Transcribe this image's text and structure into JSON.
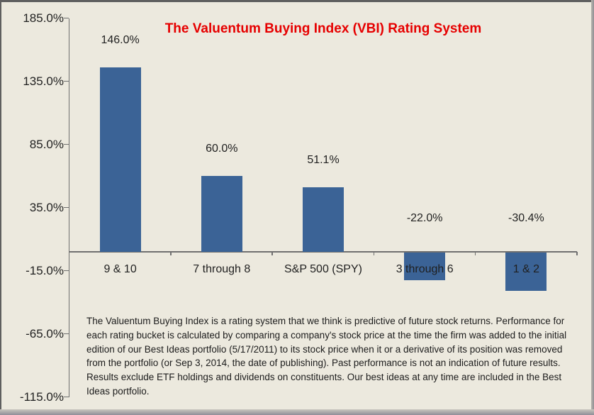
{
  "title": "The Valuentum Buying Index (VBI) Rating System",
  "chart_data": {
    "type": "bar",
    "title": "The Valuentum Buying Index (VBI) Rating System",
    "title_color": "#E60000",
    "categories": [
      "9 & 10",
      "7 through 8",
      "S&P 500 (SPY)",
      "3 through 6",
      "1 & 2"
    ],
    "values": [
      146.0,
      60.0,
      51.1,
      -22.0,
      -30.4
    ],
    "data_labels": [
      "146.0%",
      "60.0%",
      "51.1%",
      "-22.0%",
      "-30.4%"
    ],
    "xlabel": "",
    "ylabel": "",
    "y_axis": {
      "min": -115,
      "max": 185,
      "tick_step": 50,
      "tick_values": [
        185,
        135,
        85,
        35,
        -15,
        -65,
        -115
      ],
      "tick_labels": [
        "185.0%",
        "135.0%",
        "85.0%",
        "35.0%",
        "-15.0%",
        "-65.0%",
        "-115.0%"
      ]
    },
    "grid": false,
    "legend": false,
    "bar_color": "#3B6396",
    "background_color": "#ECE9DE",
    "axis_color": "#707070"
  },
  "footnote": {
    "text": "The Valuentum Buying Index is a rating system that we think is predictive of future stock returns. Performance for each rating bucket is calculated by comparing a company's stock price at the time the firm was added to the initial edition of our Best Ideas portfolio (5/17/2011) to its stock price when it or a derivative of its position was removed from the portfolio (or Sep 3, 2014, the date of publishing). Past performance is not an indication of future results. Results exclude ETF holdings and dividends on constituents. Our best ideas at any time are included in the Best Ideas portfolio."
  }
}
